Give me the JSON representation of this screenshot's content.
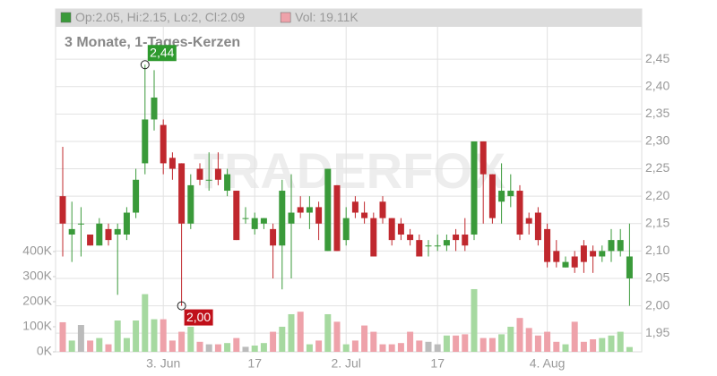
{
  "chart_data": {
    "type": "candlestick",
    "subtitle": "3 Monate, 1-Tages-Kerzen",
    "watermark": "TRADERFOX",
    "legend": [
      {
        "label": "Op:2.05, Hi:2.15, Lo:2, Cl:2.09",
        "color": "#3a9a3a"
      },
      {
        "label": "Vol: 19.11K",
        "color": "#eea2aa"
      }
    ],
    "categories": [
      null,
      null,
      null,
      null,
      null,
      null,
      null,
      null,
      null,
      null,
      null,
      "3. Jun",
      null,
      null,
      null,
      null,
      null,
      null,
      null,
      null,
      null,
      "17",
      null,
      null,
      null,
      null,
      null,
      null,
      null,
      null,
      null,
      "2. Jul",
      null,
      null,
      null,
      null,
      null,
      null,
      null,
      null,
      null,
      "17",
      null,
      null,
      null,
      null,
      null,
      null,
      null,
      null,
      null,
      null,
      null,
      "4. Aug",
      null,
      null,
      null,
      null,
      null,
      null,
      null,
      null,
      null
    ],
    "open": [
      2.2,
      2.13,
      2.15,
      2.13,
      2.11,
      2.14,
      2.13,
      2.13,
      2.17,
      2.26,
      2.34,
      2.33,
      2.27,
      2.26,
      2.15,
      2.25,
      2.23,
      2.25,
      2.21,
      2.21,
      2.16,
      2.14,
      2.15,
      2.14,
      2.11,
      2.15,
      2.18,
      2.17,
      2.18,
      2.1,
      2.22,
      2.12,
      2.19,
      2.17,
      2.16,
      2.19,
      2.16,
      2.15,
      2.13,
      2.12,
      2.11,
      2.11,
      2.11,
      2.13,
      2.13,
      2.13,
      2.3,
      2.24,
      2.19,
      2.2,
      2.21,
      2.16,
      2.17,
      2.14,
      2.1,
      2.07,
      2.09,
      2.11,
      2.1,
      2.09,
      2.1,
      2.1,
      2.05
    ],
    "high": [
      2.29,
      2.19,
      2.18,
      2.13,
      2.16,
      2.15,
      2.15,
      2.18,
      2.25,
      2.44,
      2.43,
      2.34,
      2.28,
      2.26,
      2.24,
      2.26,
      2.28,
      2.28,
      2.25,
      2.21,
      2.18,
      2.17,
      2.16,
      2.15,
      2.23,
      2.24,
      2.2,
      2.2,
      2.19,
      2.25,
      2.22,
      2.18,
      2.2,
      2.19,
      2.17,
      2.2,
      2.16,
      2.16,
      2.14,
      2.13,
      2.12,
      2.13,
      2.13,
      2.14,
      2.16,
      2.3,
      2.3,
      2.24,
      2.26,
      2.24,
      2.22,
      2.17,
      2.18,
      2.15,
      2.12,
      2.09,
      2.1,
      2.12,
      2.11,
      2.11,
      2.14,
      2.14,
      2.15
    ],
    "low": [
      2.09,
      2.08,
      2.09,
      2.11,
      2.11,
      2.11,
      2.02,
      2.12,
      2.16,
      2.24,
      2.32,
      2.24,
      2.23,
      2.0,
      2.14,
      2.22,
      2.21,
      2.22,
      2.2,
      2.12,
      2.15,
      2.13,
      2.14,
      2.05,
      2.03,
      2.05,
      2.16,
      2.14,
      2.12,
      2.1,
      2.1,
      2.11,
      2.16,
      2.15,
      2.09,
      2.15,
      2.11,
      2.12,
      2.11,
      2.09,
      2.09,
      2.1,
      2.1,
      2.1,
      2.1,
      2.12,
      2.15,
      2.15,
      2.15,
      2.18,
      2.12,
      2.13,
      2.11,
      2.07,
      2.07,
      2.07,
      2.06,
      2.06,
      2.06,
      2.08,
      2.08,
      2.09,
      2.0
    ],
    "close": [
      2.15,
      2.14,
      2.15,
      2.11,
      2.15,
      2.12,
      2.14,
      2.17,
      2.23,
      2.34,
      2.38,
      2.26,
      2.25,
      2.15,
      2.22,
      2.23,
      2.23,
      2.23,
      2.24,
      2.12,
      2.16,
      2.16,
      2.16,
      2.11,
      2.21,
      2.17,
      2.17,
      2.18,
      2.15,
      2.25,
      2.1,
      2.16,
      2.17,
      2.16,
      2.09,
      2.16,
      2.12,
      2.13,
      2.12,
      2.09,
      2.11,
      2.11,
      2.12,
      2.12,
      2.11,
      2.3,
      2.24,
      2.16,
      2.21,
      2.21,
      2.13,
      2.15,
      2.12,
      2.08,
      2.08,
      2.08,
      2.07,
      2.08,
      2.09,
      2.1,
      2.12,
      2.12,
      2.09
    ],
    "volume": [
      118000,
      45000,
      107000,
      45000,
      55000,
      30000,
      125000,
      55000,
      125000,
      230000,
      130000,
      130000,
      45000,
      80000,
      100000,
      40000,
      30000,
      30000,
      35000,
      55000,
      20000,
      25000,
      35000,
      80000,
      100000,
      150000,
      160000,
      30000,
      45000,
      150000,
      120000,
      30000,
      45000,
      105000,
      80000,
      30000,
      30000,
      35000,
      80000,
      45000,
      40000,
      30000,
      65000,
      65000,
      70000,
      250000,
      55000,
      55000,
      70000,
      100000,
      135000,
      95000,
      65000,
      80000,
      40000,
      30000,
      120000,
      40000,
      50000,
      55000,
      65000,
      80000,
      19110
    ],
    "up_color": "#3a9a3a",
    "down_color": "#c0282e",
    "volume_up_color": "#a6d9a0",
    "volume_down_color": "#eea2aa",
    "volume_flat_color": "#bbbbbb",
    "ylim": [
      1.916,
      2.509
    ],
    "yticks": [
      {
        "value": 1.95,
        "label": "1,95"
      },
      {
        "value": 2.0,
        "label": "2,00"
      },
      {
        "value": 2.05,
        "label": "2,05"
      },
      {
        "value": 2.1,
        "label": "2,10"
      },
      {
        "value": 2.15,
        "label": "2,15"
      },
      {
        "value": 2.2,
        "label": "2,20"
      },
      {
        "value": 2.25,
        "label": "2,25"
      },
      {
        "value": 2.3,
        "label": "2,30"
      },
      {
        "value": 2.35,
        "label": "2,35"
      },
      {
        "value": 2.4,
        "label": "2,40"
      },
      {
        "value": 2.45,
        "label": "2,45"
      }
    ],
    "y2lim": [
      0,
      1296000
    ],
    "y2ticks": [
      {
        "value": 0,
        "label": "0K"
      },
      {
        "value": 100000,
        "label": "100K"
      },
      {
        "value": 200000,
        "label": "200K"
      },
      {
        "value": 300000,
        "label": "300K"
      },
      {
        "value": 400000,
        "label": "400K"
      }
    ],
    "annotations": [
      {
        "label": "2,44",
        "value": 2.44,
        "color": "#2e9a2e"
      },
      {
        "label": "2,00",
        "value": 2.0,
        "color": "#c0101a"
      }
    ],
    "grid": true
  }
}
